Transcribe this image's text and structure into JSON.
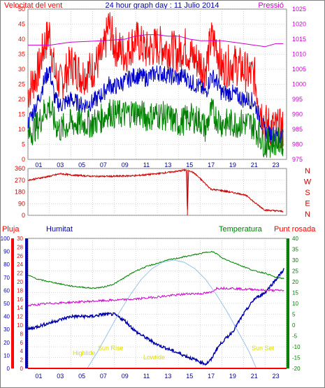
{
  "title": "24 hour graph day : 11 Julio 2014",
  "colors": {
    "wind": "#ff0000",
    "gust": "#ff0000",
    "avg": "#0000cc",
    "gust_low": "#008000",
    "pressure": "#cc00cc",
    "direction": "#cc0000",
    "rain": "#ff0000",
    "humidity": "#0000aa",
    "temperature": "#008000",
    "dewpoint": "#cc00cc",
    "sun": "#99c2ee",
    "tide": "#dddd00",
    "frame": "#808080",
    "grid": "#b0b0b0"
  },
  "chart_data": [
    {
      "type": "line",
      "panel": "wind-pressure",
      "left_label": "Velocitat del vent",
      "right_label": "Pressió",
      "y_left_ticks": [
        "50",
        "45",
        "40",
        "35",
        "30",
        "25",
        "20",
        "15",
        "10",
        "5",
        "0"
      ],
      "y_left_range": [
        0,
        50
      ],
      "y_right_ticks": [
        "1025",
        "1020",
        "1015",
        "1010",
        "1005",
        "1000",
        "995",
        "990",
        "985",
        "980",
        "975"
      ],
      "y_right_range": [
        975,
        1025
      ],
      "x_ticks": [
        "01",
        "03",
        "05",
        "07",
        "09",
        "11",
        "13",
        "15",
        "17",
        "19",
        "21",
        "23"
      ],
      "x_range": [
        0,
        24
      ],
      "grid": true,
      "series": [
        {
          "role": "gust",
          "x": [
            0,
            1,
            1.5,
            2,
            2.5,
            3,
            4,
            5,
            6,
            7,
            7.5,
            8,
            9,
            10,
            11,
            12,
            13,
            14,
            14.5,
            15,
            16,
            16.5,
            17,
            17.5,
            18,
            19,
            20,
            20.5,
            21,
            21.5,
            22,
            23,
            23.7
          ],
          "y": [
            22,
            30,
            38,
            42,
            28,
            25,
            32,
            28,
            30,
            35,
            45,
            38,
            35,
            40,
            36,
            38,
            37,
            35,
            38,
            35,
            32,
            30,
            40,
            38,
            30,
            32,
            30,
            28,
            28,
            18,
            12,
            10,
            10
          ]
        },
        {
          "role": "avg",
          "x": [
            0,
            1,
            1.5,
            2,
            2.5,
            3,
            4,
            5,
            6,
            7,
            7.5,
            8,
            9,
            10,
            11,
            12,
            13,
            14,
            14.5,
            15,
            16,
            16.5,
            17,
            17.5,
            18,
            19,
            20,
            20.5,
            21,
            21.5,
            22,
            23,
            23.7
          ],
          "y": [
            12,
            20,
            26,
            30,
            20,
            18,
            20,
            18,
            19,
            22,
            25,
            24,
            26,
            28,
            27,
            29,
            28,
            27,
            28,
            26,
            24,
            22,
            28,
            26,
            22,
            22,
            20,
            20,
            19,
            14,
            9,
            8,
            8
          ]
        },
        {
          "role": "gust_low",
          "x": [
            0,
            1,
            1.5,
            2,
            2.5,
            3,
            4,
            5,
            6,
            7,
            7.5,
            8,
            9,
            10,
            11,
            12,
            13,
            14,
            14.5,
            15,
            16,
            16.5,
            17,
            17.5,
            18,
            19,
            20,
            20.5,
            21,
            21.5,
            22,
            23,
            23.7
          ],
          "y": [
            8,
            12,
            16,
            18,
            12,
            10,
            12,
            12,
            12,
            14,
            16,
            15,
            15,
            16,
            14,
            15,
            14,
            12,
            13,
            14,
            13,
            10,
            16,
            14,
            12,
            12,
            12,
            12,
            11,
            8,
            5,
            6,
            6
          ]
        },
        {
          "role": "pressure",
          "x": [
            0,
            2,
            3,
            4,
            7,
            9,
            10,
            11,
            12,
            13,
            14,
            15,
            16,
            17,
            18,
            19,
            20,
            21,
            22,
            23,
            23.7
          ],
          "y": [
            1013,
            1013,
            1013.5,
            1014,
            1014.5,
            1015,
            1016,
            1016.5,
            1016.5,
            1016,
            1016,
            1015,
            1014.5,
            1014.5,
            1014.5,
            1014,
            1013.5,
            1013,
            1012.5,
            1013.5,
            1013.5
          ]
        }
      ]
    },
    {
      "type": "line",
      "panel": "direction",
      "right_label": "N W S E N",
      "compass": [
        "N",
        "W",
        "S",
        "E",
        "N"
      ],
      "y_left_ticks": [
        "360",
        "270",
        "180",
        "90",
        "0"
      ],
      "y_left_range": [
        0,
        360
      ],
      "x_range": [
        0,
        24
      ],
      "grid": true,
      "series": [
        {
          "role": "direction",
          "x": [
            0,
            1,
            2,
            3,
            4,
            6,
            8,
            10,
            12,
            13,
            14,
            14.7,
            14.8,
            14.9,
            15,
            15.5,
            16,
            16.5,
            17,
            18,
            19,
            20,
            20.5,
            21,
            21.5,
            22,
            23,
            23.7
          ],
          "y": [
            270,
            285,
            300,
            320,
            310,
            300,
            300,
            305,
            320,
            330,
            340,
            350,
            0,
            340,
            345,
            320,
            280,
            240,
            200,
            190,
            175,
            160,
            140,
            100,
            70,
            40,
            35,
            30
          ]
        }
      ]
    },
    {
      "type": "line",
      "panel": "rain-humidity-temperature",
      "labels": {
        "rain": "Pluja",
        "humidity": "Humitat",
        "temperature": "Temperatura",
        "dewpoint": "Punt rosada"
      },
      "y_rain_ticks": [
        "100",
        "90",
        "80",
        "70",
        "60",
        "50",
        "40",
        "30",
        "20",
        "10",
        "0"
      ],
      "y_humidity_ticks": [
        "30",
        "28",
        "26",
        "24",
        "22",
        "20",
        "18",
        "16",
        "14",
        "12",
        "10",
        "8",
        "6",
        "4",
        "2",
        "0"
      ],
      "y_temperature_ticks": [
        "40",
        "35",
        "30",
        "25",
        "20",
        "15",
        "10",
        "5",
        "0",
        "-5",
        "-10",
        "-15",
        "-20"
      ],
      "y_temperature_range": [
        -20,
        40
      ],
      "x_ticks": [
        "01",
        "03",
        "05",
        "07",
        "09",
        "11",
        "13",
        "15",
        "17",
        "19",
        "21",
        "23"
      ],
      "x_range": [
        0,
        24
      ],
      "grid": true,
      "annotations": [
        "Highlide",
        "Sun Rise",
        "Lowtide",
        "Sun Set"
      ],
      "series": [
        {
          "role": "humidity",
          "x": [
            0,
            2,
            4,
            6,
            7,
            8,
            9,
            10,
            11,
            12,
            13,
            14,
            15,
            16,
            16.5,
            17,
            17.5,
            18,
            19,
            20,
            21,
            22,
            23,
            23.8
          ],
          "y": [
            9,
            10.5,
            12,
            12,
            12.5,
            12.5,
            11,
            8.5,
            7,
            5.5,
            4.5,
            3.5,
            2.5,
            1.5,
            1,
            2,
            4.5,
            6,
            8.5,
            12.5,
            16,
            17.5,
            20.5,
            23
          ]
        },
        {
          "role": "temperature",
          "x": [
            0,
            1,
            2,
            3,
            4,
            5,
            6,
            7,
            8,
            9,
            10,
            11,
            12,
            13,
            14,
            15,
            16,
            17,
            17.5,
            18,
            19,
            20,
            21,
            22,
            23,
            23.8
          ],
          "y": [
            23,
            21,
            20,
            19,
            18,
            17.5,
            17,
            17.5,
            19,
            22,
            25,
            27,
            28.5,
            30,
            31,
            32,
            33,
            34,
            33,
            31,
            29,
            27,
            25,
            24,
            22,
            21.5
          ]
        },
        {
          "role": "dewpoint",
          "x": [
            0,
            2,
            4,
            6,
            8,
            10,
            12,
            13,
            14,
            15,
            16,
            17,
            17.5,
            18,
            19,
            20,
            21,
            22,
            23,
            23.8
          ],
          "y": [
            9,
            10,
            10.5,
            11,
            11.5,
            12,
            13,
            13.5,
            14,
            14.5,
            14.5,
            15,
            17,
            17,
            17,
            16.5,
            16.5,
            16,
            16,
            16
          ]
        },
        {
          "role": "sun",
          "x": [
            5.5,
            6.5,
            7.5,
            8.5,
            9.5,
            10.5,
            11.5,
            12.5,
            13.5,
            14.5,
            15.5,
            16.5,
            17.5,
            18.5,
            19.5,
            20.5,
            21.2
          ],
          "y": [
            -20,
            -12,
            -3,
            6,
            14,
            21,
            26,
            29,
            30,
            29,
            26,
            21,
            14,
            6,
            -3,
            -12,
            -20
          ]
        },
        {
          "role": "rain",
          "x": [
            0,
            24
          ],
          "y": [
            0,
            0
          ]
        }
      ]
    }
  ]
}
